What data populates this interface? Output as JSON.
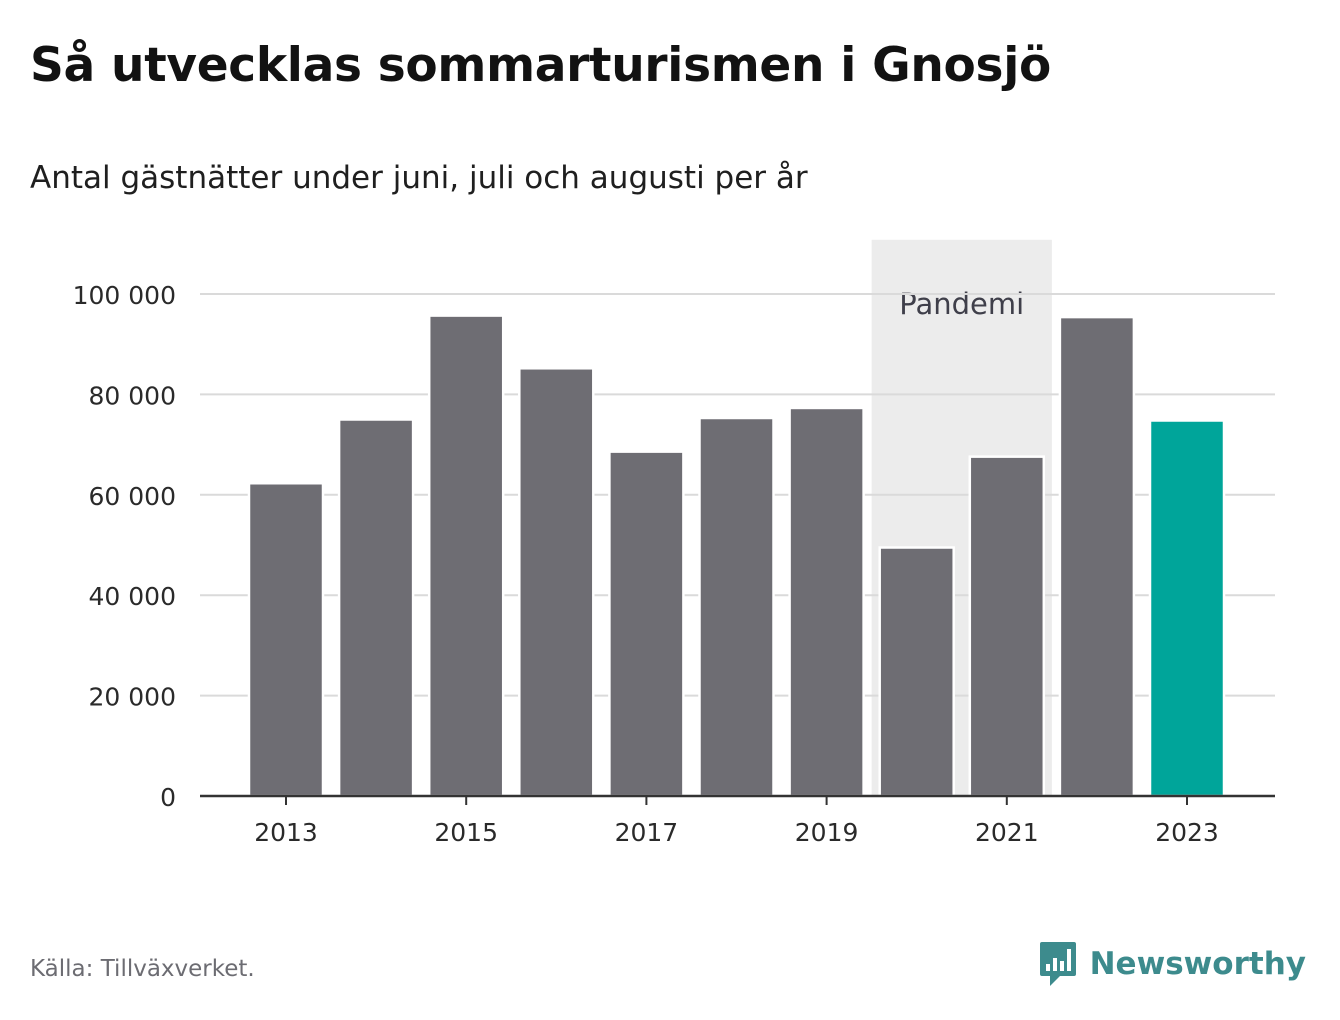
{
  "header": {
    "title": "Så utvecklas sommarturismen i Gnosjö",
    "subtitle": "Antal gästnätter under juni, juli och augusti per år"
  },
  "footer": {
    "source": "Källa: Tillväxverket.",
    "brand": "Newsworthy",
    "brand_icon": "bar-chart-speech-icon"
  },
  "colors": {
    "bar": "#6e6d73",
    "highlight": "#00a59a",
    "band": "#ececec",
    "grid": "#dadada",
    "axis": "#333333",
    "brand": "#3d8b8d"
  },
  "chart_data": {
    "type": "bar",
    "categories": [
      "2013",
      "2014",
      "2015",
      "2016",
      "2017",
      "2018",
      "2019",
      "2020",
      "2021",
      "2022",
      "2023"
    ],
    "values": [
      62300,
      75000,
      95700,
      85200,
      68600,
      75300,
      77300,
      49500,
      67600,
      95400,
      74800
    ],
    "highlight_category": "2023",
    "xlabel": "",
    "ylabel": "",
    "ylim": [
      0,
      110000
    ],
    "yticks": [
      0,
      20000,
      40000,
      60000,
      80000,
      100000
    ],
    "ytick_labels": [
      "0",
      "20 000",
      "40 000",
      "60 000",
      "80 000",
      "100 000"
    ],
    "xtick_labels": [
      "2013",
      "2015",
      "2017",
      "2019",
      "2021",
      "2023"
    ],
    "grid": true,
    "legend": "none",
    "annotation": {
      "label": "Pandemi",
      "from": "2020",
      "to": "2021"
    }
  }
}
